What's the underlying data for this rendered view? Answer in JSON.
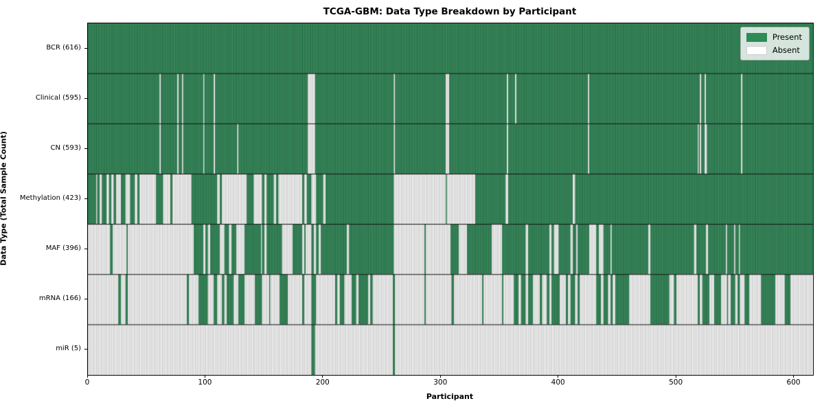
{
  "chart_data": {
    "type": "heatmap",
    "title": "TCGA-GBM: Data Type Breakdown by Participant",
    "xlabel": "Participant",
    "ylabel": "Data Type (Total Sample Count)",
    "n_participants": 616,
    "x_ticks": [
      0,
      100,
      200,
      300,
      400,
      500,
      600
    ],
    "xlim": [
      0,
      616
    ],
    "grid": "row-separators-only",
    "legend": {
      "position": "upper right",
      "items": [
        {
          "label": "Present",
          "color": "#2e8b57"
        },
        {
          "label": "Absent",
          "color": "#ffffff"
        }
      ]
    },
    "colors": {
      "present": "#2e8b57",
      "present_edge": "#1b4d32",
      "absent": "#ffffff",
      "absent_edge": "#9c9c9c",
      "separator": "#111111",
      "frame": "#000000"
    },
    "rows": [
      {
        "label": "BCR (616)",
        "data_type": "BCR",
        "present_count": 616,
        "segments": [
          [
            0,
            616,
            1
          ]
        ]
      },
      {
        "label": "Clinical (595)",
        "data_type": "Clinical",
        "present_count": 595,
        "segments": [
          [
            0,
            616,
            1
          ]
        ],
        "absent": [
          61,
          76,
          80,
          98,
          107,
          187,
          188,
          189,
          190,
          191,
          192,
          260,
          304,
          305,
          306,
          356,
          363,
          425,
          520,
          524,
          555
        ]
      },
      {
        "label": "CN (593)",
        "data_type": "CN",
        "present_count": 593,
        "segments": [
          [
            0,
            616,
            1
          ]
        ],
        "absent": [
          61,
          76,
          80,
          98,
          107,
          127,
          187,
          188,
          189,
          190,
          191,
          192,
          260,
          304,
          305,
          306,
          356,
          425,
          518,
          520,
          524,
          525,
          555
        ]
      },
      {
        "label": "Methylation (423)",
        "data_type": "Methylation",
        "present_count": 423,
        "segments": [
          [
            0,
            7,
            1
          ],
          [
            7,
            22,
            0.6
          ],
          [
            22,
            57,
            0.5
          ],
          [
            57,
            90,
            0.25
          ],
          [
            90,
            101,
            1
          ],
          [
            101,
            110,
            0.8
          ],
          [
            110,
            135,
            0.35
          ],
          [
            135,
            141,
            0.85
          ],
          [
            141,
            152,
            0.2
          ],
          [
            152,
            158,
            0.8
          ],
          [
            158,
            186,
            0.2
          ],
          [
            186,
            196,
            0.7
          ],
          [
            196,
            208,
            0.45
          ],
          [
            208,
            260,
            1
          ],
          [
            260,
            329,
            0
          ],
          [
            329,
            355,
            1
          ],
          [
            355,
            357,
            0
          ],
          [
            357,
            412,
            1
          ],
          [
            412,
            414,
            0
          ],
          [
            414,
            616,
            1
          ]
        ],
        "present": [
          304
        ]
      },
      {
        "label": "MAF (396)",
        "data_type": "MAF",
        "present_count": 396,
        "segments": [
          [
            0,
            19,
            0.06
          ],
          [
            19,
            21,
            1
          ],
          [
            21,
            33,
            0.04
          ],
          [
            33,
            34,
            1
          ],
          [
            34,
            90,
            0.03
          ],
          [
            90,
            96,
            1
          ],
          [
            96,
            101,
            0.4
          ],
          [
            101,
            110,
            0.85
          ],
          [
            110,
            118,
            0.5
          ],
          [
            118,
            128,
            0.85
          ],
          [
            128,
            133,
            0.15
          ],
          [
            133,
            147,
            0.9
          ],
          [
            147,
            152,
            0.2
          ],
          [
            152,
            165,
            0.85
          ],
          [
            165,
            172,
            0.15
          ],
          [
            172,
            185,
            0.85
          ],
          [
            185,
            190,
            0.2
          ],
          [
            190,
            208,
            0.8
          ],
          [
            208,
            260,
            0.97
          ],
          [
            260,
            286,
            0
          ],
          [
            286,
            287,
            1
          ],
          [
            287,
            308,
            0
          ],
          [
            308,
            315,
            1
          ],
          [
            315,
            320,
            0.2
          ],
          [
            320,
            343,
            0.8
          ],
          [
            343,
            352,
            0.05
          ],
          [
            352,
            390,
            0.9
          ],
          [
            390,
            398,
            0.4
          ],
          [
            398,
            415,
            0.85
          ],
          [
            415,
            416,
            0
          ],
          [
            416,
            424,
            1
          ],
          [
            424,
            438,
            0.45
          ],
          [
            438,
            444,
            0.9
          ],
          [
            444,
            445,
            0
          ],
          [
            445,
            475,
            1
          ],
          [
            475,
            479,
            0.4
          ],
          [
            479,
            515,
            1
          ],
          [
            515,
            517,
            0
          ],
          [
            517,
            525,
            1
          ],
          [
            525,
            527,
            0
          ],
          [
            527,
            542,
            1
          ],
          [
            542,
            543,
            0
          ],
          [
            543,
            549,
            1
          ],
          [
            549,
            550,
            0
          ],
          [
            550,
            553,
            1
          ],
          [
            553,
            554,
            0
          ],
          [
            554,
            616,
            1
          ]
        ]
      },
      {
        "label": "mRNA (166)",
        "data_type": "mRNA",
        "present_count": 166,
        "segments": [
          [
            0,
            26,
            0.02
          ],
          [
            26,
            28,
            1
          ],
          [
            28,
            32,
            0
          ],
          [
            32,
            34,
            1
          ],
          [
            34,
            94,
            0.01
          ],
          [
            94,
            99,
            1
          ],
          [
            99,
            107,
            0.25
          ],
          [
            107,
            118,
            0.7
          ],
          [
            118,
            127,
            0.35
          ],
          [
            127,
            133,
            0.8
          ],
          [
            133,
            141,
            0.05
          ],
          [
            141,
            155,
            0.4
          ],
          [
            155,
            163,
            0.05
          ],
          [
            163,
            172,
            0.5
          ],
          [
            172,
            182,
            0.05
          ],
          [
            182,
            198,
            0.7
          ],
          [
            198,
            214,
            0.3
          ],
          [
            214,
            242,
            0.65
          ],
          [
            242,
            259,
            0.02
          ],
          [
            259,
            261,
            1
          ],
          [
            261,
            286,
            0
          ],
          [
            286,
            287,
            1
          ],
          [
            287,
            309,
            0
          ],
          [
            309,
            311,
            1
          ],
          [
            311,
            335,
            0
          ],
          [
            335,
            336,
            1
          ],
          [
            336,
            352,
            0
          ],
          [
            352,
            353,
            1
          ],
          [
            353,
            362,
            0
          ],
          [
            362,
            378,
            0.6
          ],
          [
            378,
            386,
            0.5
          ],
          [
            386,
            394,
            0.25
          ],
          [
            394,
            401,
            0.9
          ],
          [
            401,
            414,
            0.3
          ],
          [
            414,
            418,
            0.6
          ],
          [
            418,
            432,
            0.25
          ],
          [
            432,
            440,
            0.5
          ],
          [
            440,
            460,
            0.6
          ],
          [
            460,
            480,
            0.25
          ],
          [
            480,
            505,
            0.65
          ],
          [
            505,
            519,
            0.3
          ],
          [
            519,
            533,
            0.6
          ],
          [
            533,
            543,
            0.25
          ],
          [
            543,
            553,
            0.4
          ],
          [
            553,
            565,
            0.65
          ],
          [
            565,
            572,
            0.1
          ],
          [
            572,
            580,
            0.8
          ],
          [
            580,
            590,
            0.2
          ],
          [
            590,
            597,
            0.9
          ],
          [
            597,
            616,
            0.08
          ]
        ]
      },
      {
        "label": "miR (5)",
        "data_type": "miR",
        "present_count": 5,
        "segments": [
          [
            0,
            616,
            0
          ]
        ],
        "present": [
          190,
          191,
          192,
          259,
          260
        ]
      }
    ]
  }
}
